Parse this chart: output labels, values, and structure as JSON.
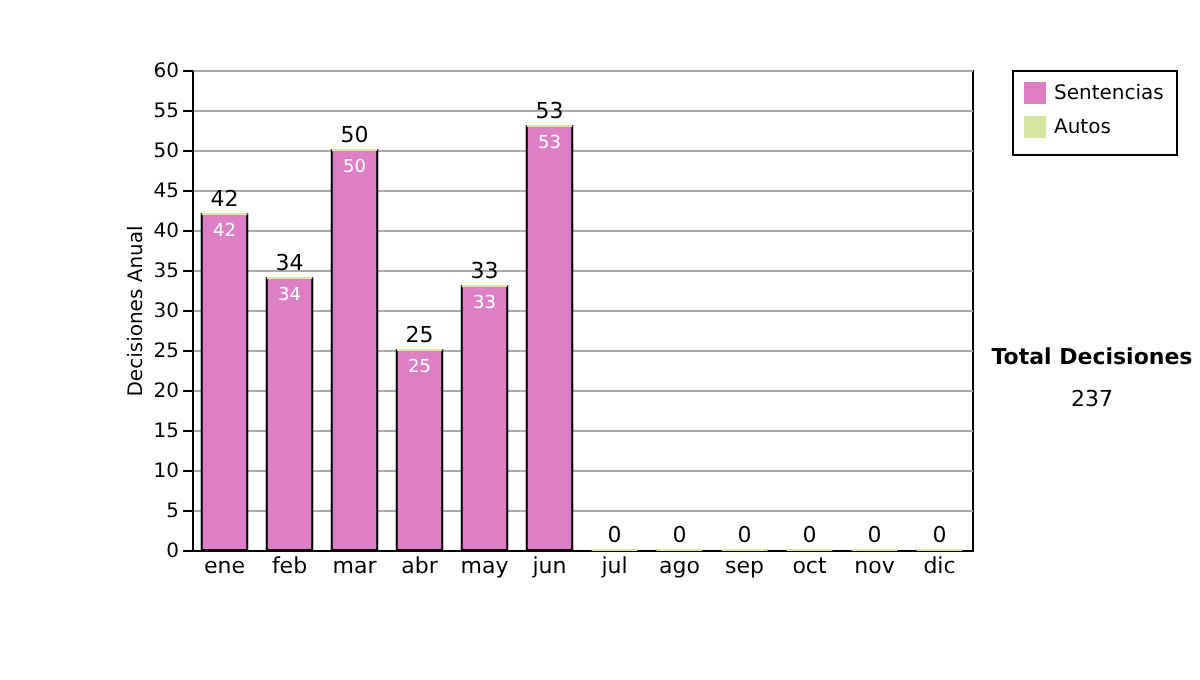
{
  "chart_data": {
    "type": "bar",
    "ylabel": "Decisiones Anual",
    "categories": [
      "ene",
      "feb",
      "mar",
      "abr",
      "may",
      "jun",
      "jul",
      "ago",
      "sep",
      "oct",
      "nov",
      "dic"
    ],
    "series": [
      {
        "name": "Sentencias",
        "color": "#dd7fc4",
        "values": [
          42,
          34,
          50,
          25,
          33,
          53,
          0,
          0,
          0,
          0,
          0,
          0
        ],
        "value_labels": [
          "42",
          "34",
          "50",
          "25",
          "33",
          "53",
          null,
          null,
          null,
          null,
          null,
          null
        ]
      },
      {
        "name": "Autos",
        "color": "#d4e6a0",
        "values": [
          0,
          0,
          0,
          0,
          0,
          0,
          0,
          0,
          0,
          0,
          0,
          0
        ]
      }
    ],
    "stacked": true,
    "totals": [
      "42",
      "34",
      "50",
      "25",
      "33",
      "53",
      "0",
      "0",
      "0",
      "0",
      "0",
      "0"
    ],
    "ylim": [
      0,
      60
    ],
    "yticks": [
      0,
      5,
      10,
      15,
      20,
      25,
      30,
      35,
      40,
      45,
      50,
      55,
      60
    ],
    "grid": "y",
    "legend": "right",
    "annotations": [
      "Total Decisiones",
      "237"
    ]
  }
}
